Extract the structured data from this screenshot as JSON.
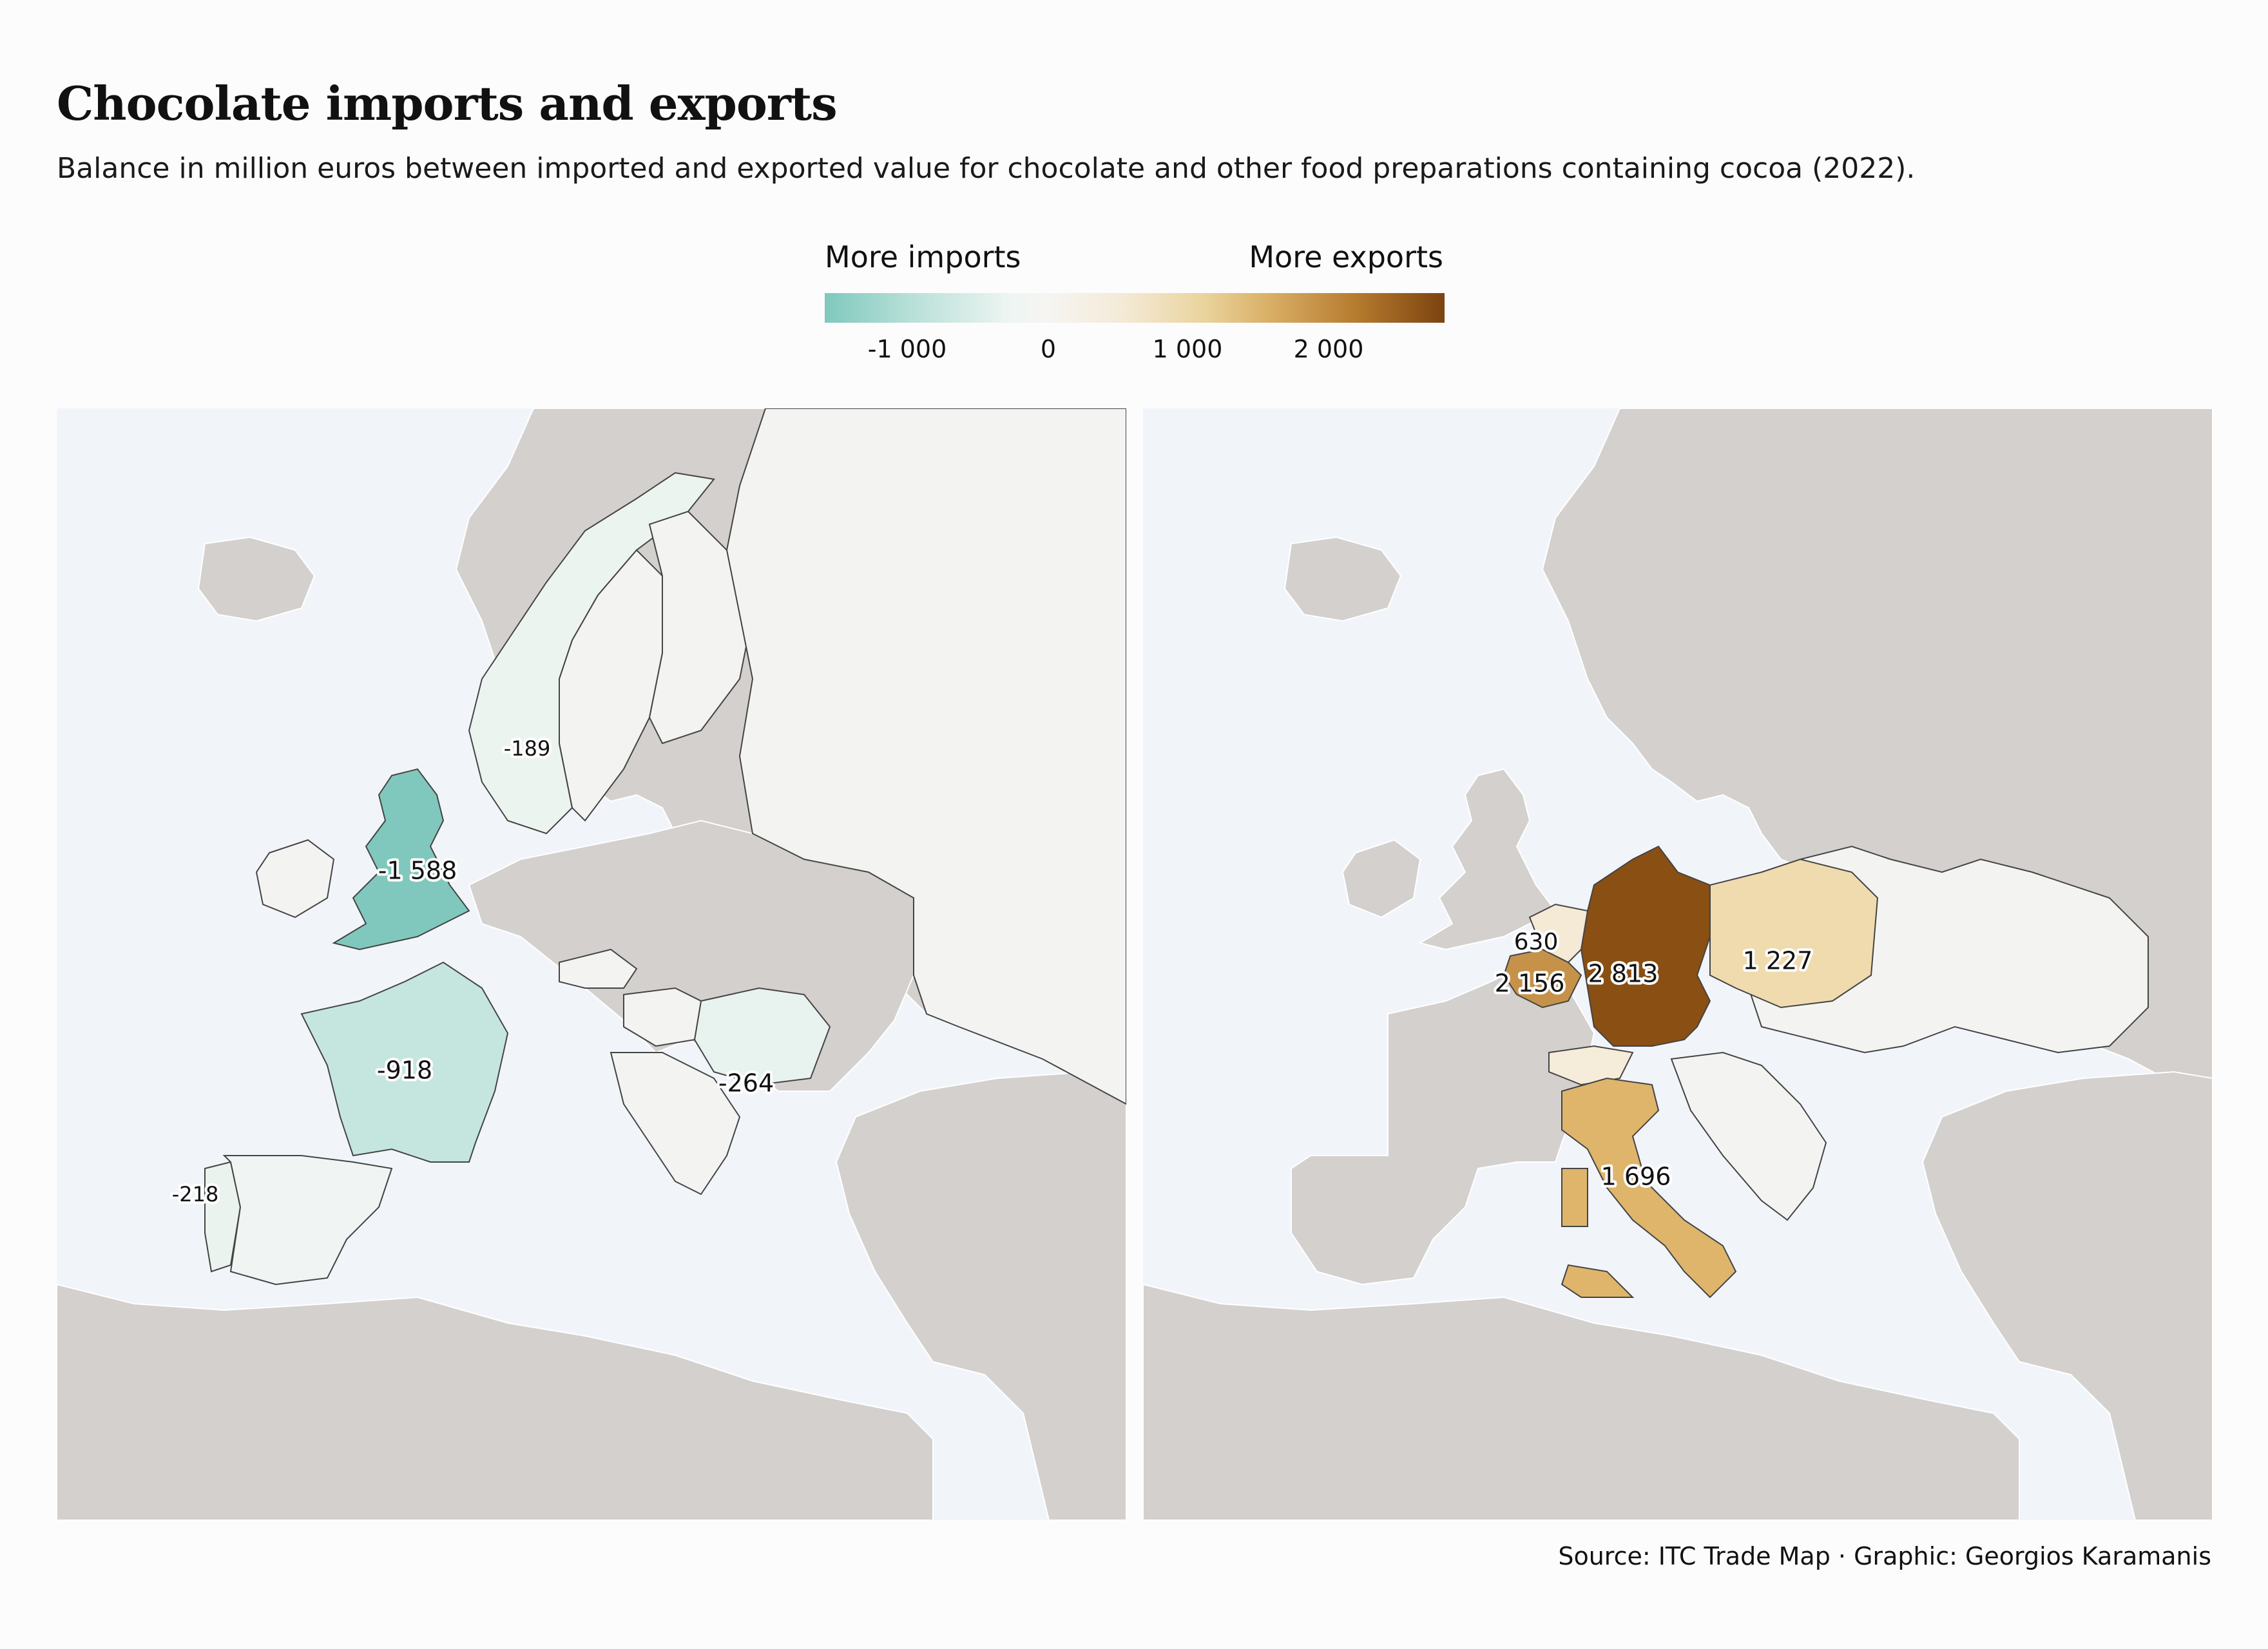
{
  "title": "Chocolate imports and exports",
  "subtitle": "Balance in million euros between imported and exported value for chocolate and other food preparations containing cocoa (2022).",
  "legend": {
    "left_label": "More imports",
    "right_label": "More exports",
    "ticks": [
      "-1 000",
      "0",
      "1 000",
      "2 000"
    ]
  },
  "maps": {
    "left": {
      "countries": [
        {
          "name": "United Kingdom",
          "label": "-1 588",
          "value": -1588,
          "color": "#80c8bd"
        },
        {
          "name": "France",
          "label": "-918",
          "value": -918,
          "color": "#c5e6df"
        },
        {
          "name": "Romania",
          "label": "-264",
          "value": -264,
          "color": "#e8f3ef"
        },
        {
          "name": "Portugal",
          "label": "-218",
          "value": -218,
          "color": "#ebf3ef"
        },
        {
          "name": "Norway",
          "label": "-189",
          "value": -189,
          "color": "#ecf4f0"
        }
      ]
    },
    "right": {
      "countries": [
        {
          "name": "Germany",
          "label": "2 813",
          "value": 2813,
          "color": "#8a4f12"
        },
        {
          "name": "Belgium",
          "label": "2 156",
          "value": 2156,
          "color": "#c6924a"
        },
        {
          "name": "Italy",
          "label": "1 696",
          "value": 1696,
          "color": "#dfb56c"
        },
        {
          "name": "Poland",
          "label": "1 227",
          "value": 1227,
          "color": "#efdbae"
        },
        {
          "name": "Netherlands",
          "label": "630",
          "value": 630,
          "color": "#f4ead5"
        }
      ]
    }
  },
  "colors": {
    "water": "#f1f5fa",
    "land": "#d3d0ce",
    "neutral_country": "#f3f3f1",
    "border": "#444444"
  },
  "source": "Source: ITC Trade Map · Graphic: Georgios Karamanis"
}
